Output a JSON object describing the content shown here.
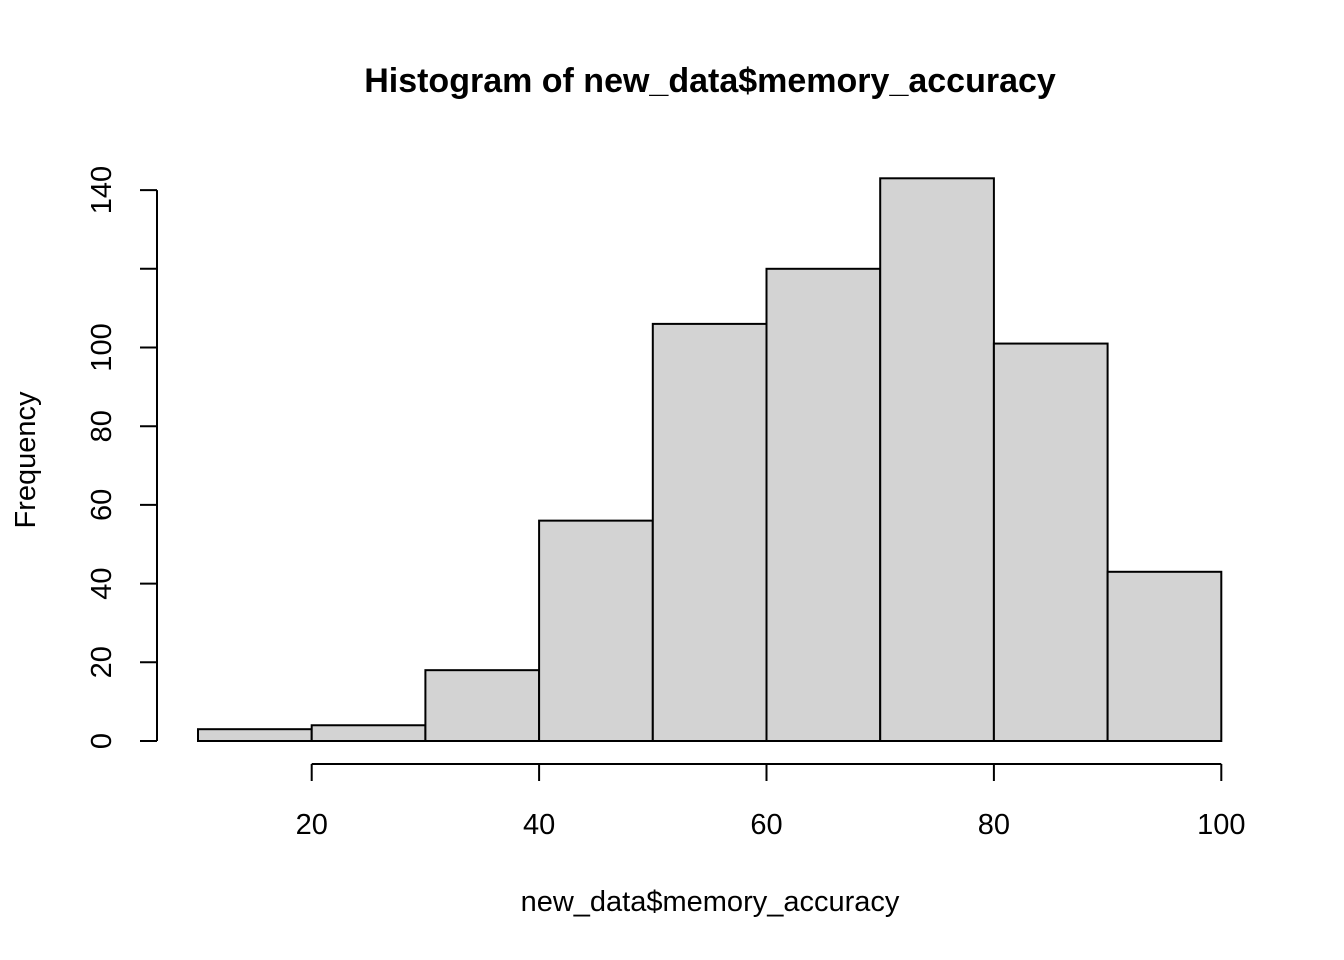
{
  "chart_data": {
    "type": "bar",
    "title": "Histogram of new_data$memory_accuracy",
    "xlabel": "new_data$memory_accuracy",
    "ylabel": "Frequency",
    "bins": [
      {
        "start": 10,
        "end": 20,
        "count": 3
      },
      {
        "start": 20,
        "end": 30,
        "count": 4
      },
      {
        "start": 30,
        "end": 40,
        "count": 18
      },
      {
        "start": 40,
        "end": 50,
        "count": 56
      },
      {
        "start": 50,
        "end": 60,
        "count": 106
      },
      {
        "start": 60,
        "end": 70,
        "count": 120
      },
      {
        "start": 70,
        "end": 80,
        "count": 143
      },
      {
        "start": 80,
        "end": 90,
        "count": 101
      },
      {
        "start": 90,
        "end": 100,
        "count": 43
      }
    ],
    "xticks": [
      20,
      40,
      60,
      80,
      100
    ],
    "yticks": [
      0,
      20,
      40,
      60,
      80,
      100,
      120,
      140
    ],
    "ytick_labels": [
      "0",
      "20",
      "40",
      "60",
      "80",
      "100",
      "",
      "140"
    ],
    "xlim": [
      10,
      100
    ],
    "ylim": [
      0,
      143
    ],
    "grid": false,
    "bar_color": "#d3d3d3",
    "edge_color": "#000000"
  }
}
